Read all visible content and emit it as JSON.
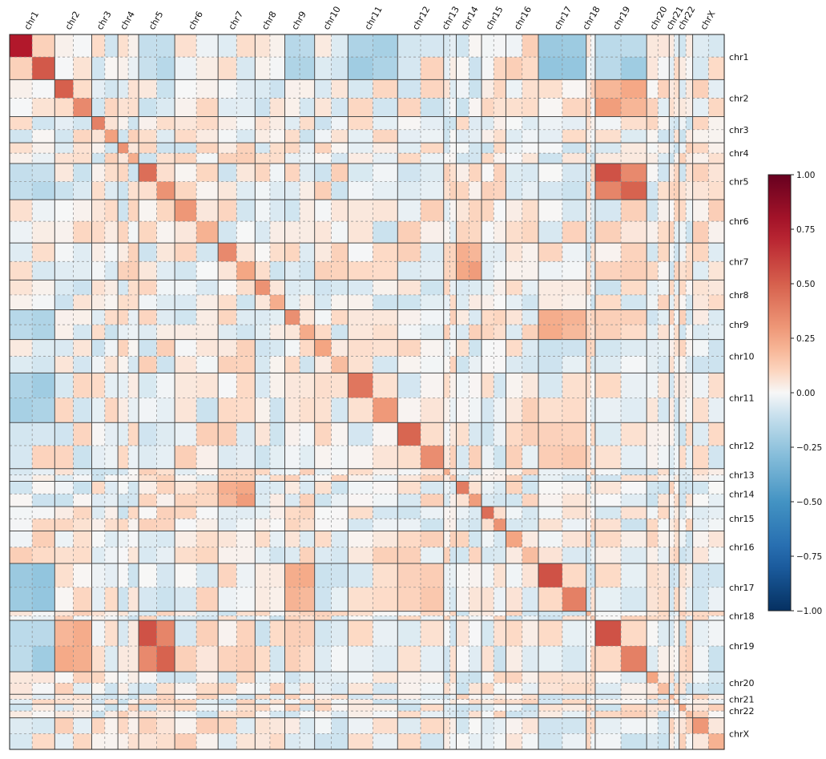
{
  "chart_data": {
    "type": "heatmap",
    "title": "",
    "xlabel": "",
    "ylabel": "",
    "chromosomes": [
      "chr1",
      "chr2",
      "chr3",
      "chr4",
      "chr5",
      "chr6",
      "chr7",
      "chr8",
      "chr9",
      "chr10",
      "chr11",
      "chr12",
      "chr13",
      "chr14",
      "chr15",
      "chr16",
      "chr17",
      "chr18",
      "chr19",
      "chr20",
      "chr21",
      "chr22",
      "chrX"
    ],
    "chromosome_weights": [
      50,
      41,
      29,
      23,
      40,
      48,
      41,
      33,
      33,
      37,
      55,
      51,
      14,
      28,
      27,
      36,
      53,
      10,
      57,
      25,
      11,
      15,
      35
    ],
    "diagonal_block_strength": [
      0.75,
      0.5,
      0.38,
      0.32,
      0.45,
      0.3,
      0.35,
      0.32,
      0.33,
      0.25,
      0.42,
      0.48,
      0.22,
      0.4,
      0.45,
      0.25,
      0.55,
      0.2,
      0.55,
      0.25,
      0.2,
      0.25,
      0.3
    ],
    "notable_offdiagonal": [
      {
        "row": "chr19",
        "col": "chr1",
        "value": -0.22
      },
      {
        "row": "chr19",
        "col": "chr2",
        "value": 0.3
      },
      {
        "row": "chr19",
        "col": "chr5",
        "value": 0.55
      },
      {
        "row": "chr11",
        "col": "chr1",
        "value": -0.28
      },
      {
        "row": "chr1",
        "col": "chr17",
        "value": -0.3
      },
      {
        "row": "chr1",
        "col": "chr9",
        "value": -0.22
      },
      {
        "row": "chr2",
        "col": "chr19",
        "value": 0.3
      },
      {
        "row": "chr14",
        "col": "chr7",
        "value": 0.3
      },
      {
        "row": "chr9",
        "col": "chr17",
        "value": 0.3
      },
      {
        "row": "chr5",
        "col": "chr1",
        "value": -0.15
      },
      {
        "row": "chr12",
        "col": "chr17",
        "value": 0.15
      }
    ],
    "colorbar": {
      "min": -1.0,
      "max": 1.0,
      "colormap": "RdBu_r",
      "ticks": [
        "1.00",
        "0.75",
        "0.50",
        "0.25",
        "0.00",
        "−0.25",
        "−0.50",
        "−0.75",
        "−1.00"
      ]
    },
    "grid": true,
    "legend": "colorbar-right"
  }
}
